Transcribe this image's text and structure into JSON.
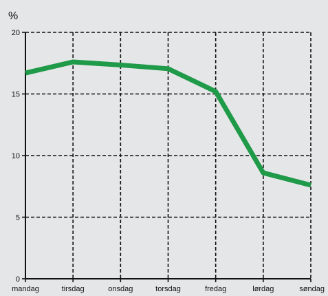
{
  "chart_data": {
    "type": "line",
    "unit_label": "%",
    "categories": [
      "mandag",
      "tirsdag",
      "onsdag",
      "torsdag",
      "fredag",
      "lørdag",
      "søndag"
    ],
    "series": [
      {
        "values": [
          16.7,
          17.6,
          17.35,
          17.05,
          15.2,
          8.6,
          7.6
        ],
        "color": "#1e9a48"
      }
    ],
    "ylim": [
      0,
      20
    ],
    "yticks": [
      0,
      5,
      10,
      15,
      20
    ],
    "grid": true,
    "legend": false
  }
}
